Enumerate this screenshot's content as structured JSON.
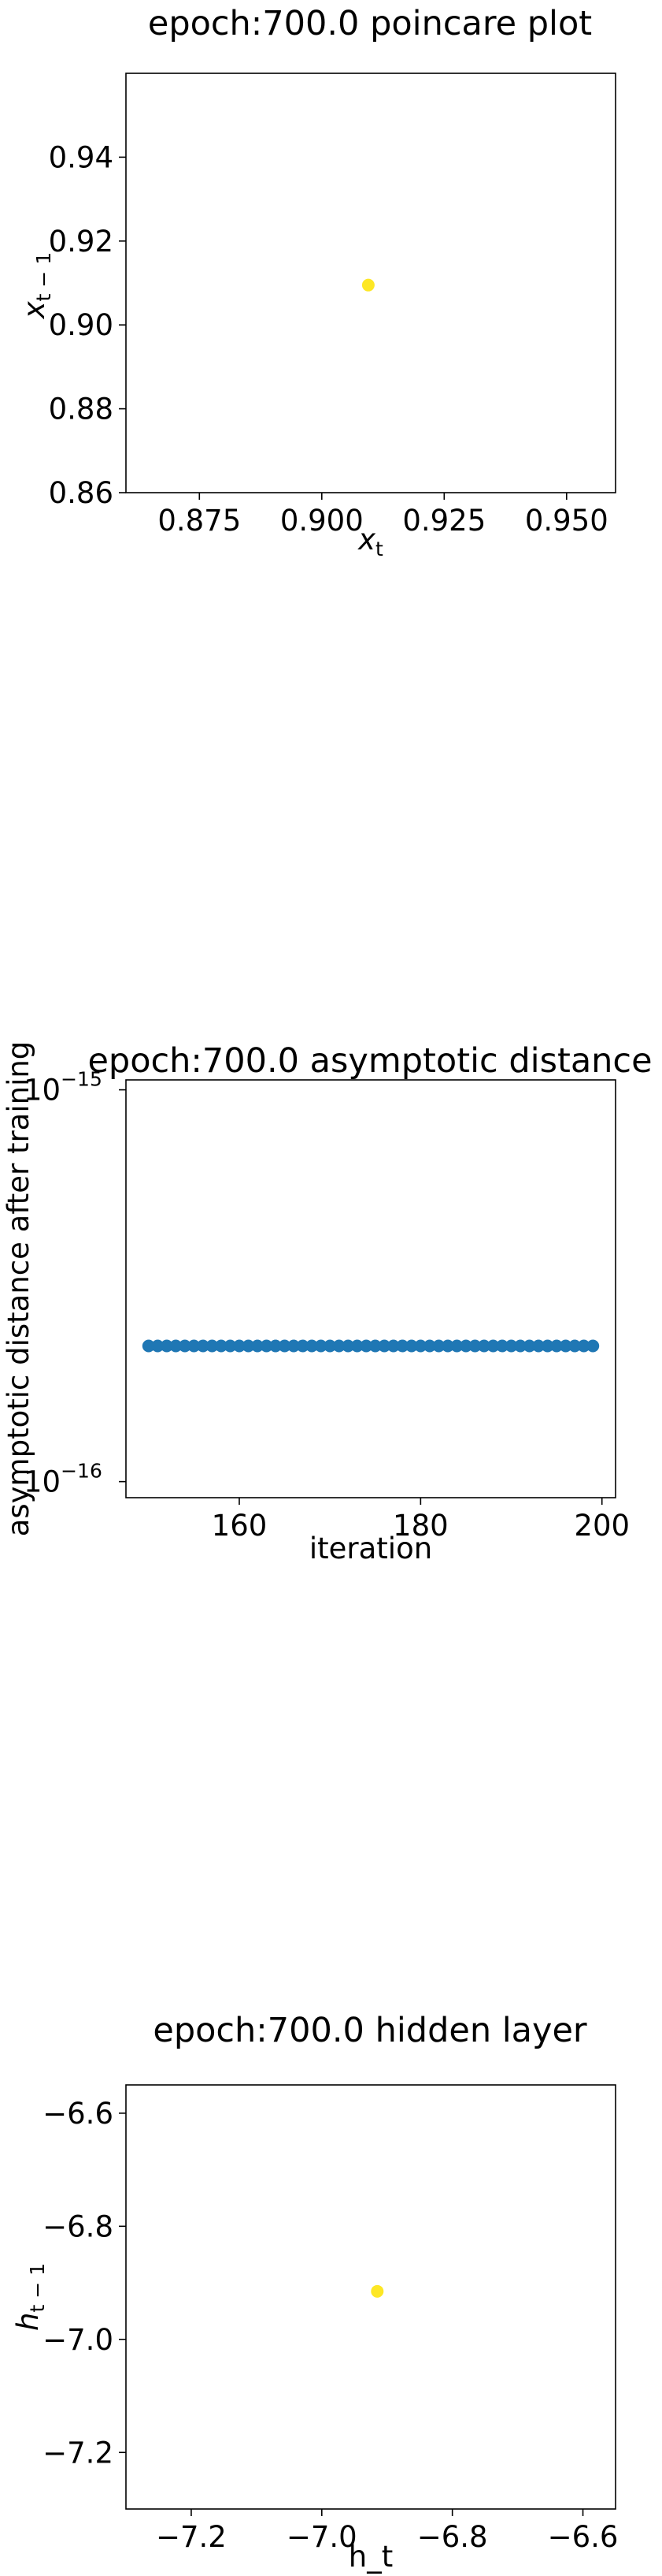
{
  "chart_data": [
    {
      "type": "scatter",
      "title": "epoch:700.0 poincare plot",
      "xlabel": "x_t",
      "ylabel": "x_{t-1}",
      "xlim": [
        0.86,
        0.96
      ],
      "ylim": [
        0.86,
        0.96
      ],
      "xticks": [
        "0.875",
        "0.900",
        "0.925",
        "0.950"
      ],
      "xtick_values": [
        0.875,
        0.9,
        0.925,
        0.95
      ],
      "yticks": [
        "0.86",
        "0.88",
        "0.90",
        "0.92",
        "0.94"
      ],
      "ytick_values": [
        0.86,
        0.88,
        0.9,
        0.92,
        0.94
      ],
      "points": [
        {
          "x": 0.9095,
          "y": 0.9095
        }
      ],
      "marker_color": "#fde725",
      "grid": false
    },
    {
      "type": "scatter",
      "title": "epoch:700.0 asymptotic distance",
      "xlabel": "iteration",
      "ylabel": "asymptotic distance after training",
      "yscale": "log",
      "xlim": [
        147.5,
        201.5
      ],
      "ylim": [
        9.1e-17,
        1.06e-15
      ],
      "xticks": [
        "160",
        "180",
        "200"
      ],
      "xtick_values": [
        160,
        180,
        200
      ],
      "yticks": [
        "10",
        "10"
      ],
      "ytick_exponents": [
        "−16",
        "−15"
      ],
      "ytick_values": [
        1e-16,
        1e-15
      ],
      "x": [
        150,
        151,
        152,
        153,
        154,
        155,
        156,
        157,
        158,
        159,
        160,
        161,
        162,
        163,
        164,
        165,
        166,
        167,
        168,
        169,
        170,
        171,
        172,
        173,
        174,
        175,
        176,
        177,
        178,
        179,
        180,
        181,
        182,
        183,
        184,
        185,
        186,
        187,
        188,
        189,
        190,
        191,
        192,
        193,
        194,
        195,
        196,
        197,
        198,
        199
      ],
      "y_constant": 2.22e-16,
      "marker_color": "#1f77b4",
      "grid": false
    },
    {
      "type": "scatter",
      "title": "epoch:700.0 hidden layer",
      "xlabel": "h_t",
      "ylabel": "h_{t-1}",
      "xlim": [
        -7.3,
        -6.55
      ],
      "ylim": [
        -7.3,
        -6.55
      ],
      "xticks": [
        "−7.2",
        "−7.0",
        "−6.8",
        "−6.6"
      ],
      "xtick_values": [
        -7.2,
        -7.0,
        -6.8,
        -6.6
      ],
      "yticks": [
        "−7.2",
        "−7.0",
        "−6.8",
        "−6.6"
      ],
      "ytick_values": [
        -7.2,
        -7.0,
        -6.8,
        -6.6
      ],
      "points": [
        {
          "x": -6.915,
          "y": -6.915
        }
      ],
      "marker_color": "#fde725",
      "grid": false
    }
  ]
}
